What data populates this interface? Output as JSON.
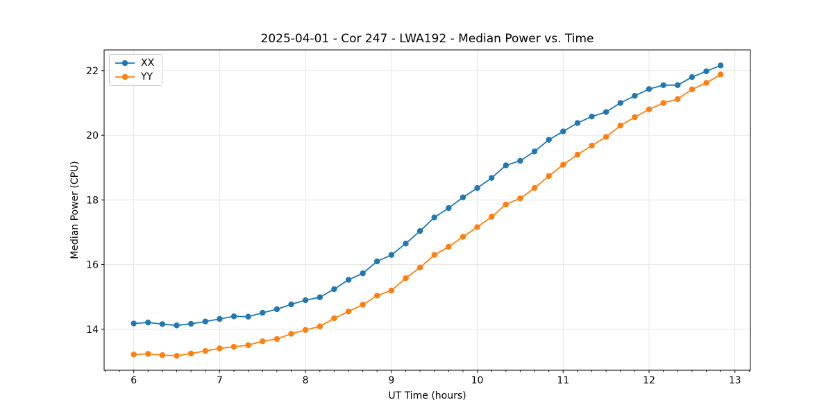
{
  "figure": {
    "title": "2025-04-01 - Cor 247 - LWA192 - Median Power vs. Time",
    "xlabel": "UT Time (hours)",
    "ylabel": "Median Power (CPU)"
  },
  "chart_data": {
    "type": "line",
    "title": "2025-04-01 - Cor 247 - LWA192 - Median Power vs. Time",
    "xlabel": "UT Time (hours)",
    "ylabel": "Median Power (CPU)",
    "x": [
      6.0,
      6.1667,
      6.3333,
      6.5,
      6.6667,
      6.8333,
      7.0,
      7.1667,
      7.3333,
      7.5,
      7.6667,
      7.8333,
      8.0,
      8.1667,
      8.3333,
      8.5,
      8.6667,
      8.8333,
      9.0,
      9.1667,
      9.3333,
      9.5,
      9.6667,
      9.8333,
      10.0,
      10.1667,
      10.3333,
      10.5,
      10.6667,
      10.8333,
      11.0,
      11.1667,
      11.3333,
      11.5,
      11.6667,
      11.8333,
      12.0,
      12.1667,
      12.3333,
      12.5,
      12.6667,
      12.8333
    ],
    "series": [
      {
        "name": "XX",
        "color": "#1f77b4",
        "marker": "circle",
        "values": [
          14.18,
          14.21,
          14.16,
          14.12,
          14.17,
          14.24,
          14.32,
          14.4,
          14.39,
          14.51,
          14.62,
          14.77,
          14.9,
          14.99,
          15.24,
          15.53,
          15.73,
          16.1,
          16.3,
          16.65,
          17.04,
          17.46,
          17.75,
          18.08,
          18.37,
          18.68,
          19.07,
          19.21,
          19.5,
          19.86,
          20.12,
          20.38,
          20.58,
          20.72,
          21.0,
          21.22,
          21.43,
          21.55,
          21.55,
          21.8,
          21.98,
          22.16
        ]
      },
      {
        "name": "YY",
        "color": "#ff7f0e",
        "marker": "circle",
        "values": [
          13.22,
          13.24,
          13.2,
          13.18,
          13.25,
          13.33,
          13.41,
          13.46,
          13.51,
          13.63,
          13.7,
          13.86,
          13.98,
          14.09,
          14.34,
          14.55,
          14.76,
          15.04,
          15.2,
          15.58,
          15.91,
          16.3,
          16.55,
          16.86,
          17.16,
          17.48,
          17.86,
          18.05,
          18.37,
          18.74,
          19.09,
          19.4,
          19.68,
          19.95,
          20.3,
          20.56,
          20.8,
          21.0,
          21.12,
          21.42,
          21.62,
          21.88
        ]
      }
    ],
    "xlim": [
      5.655,
      13.18
    ],
    "ylim": [
      12.733,
      22.64
    ],
    "xticks": [
      6,
      7,
      8,
      9,
      10,
      11,
      12,
      13
    ],
    "yticks": [
      14,
      16,
      18,
      20,
      22
    ],
    "x_minor_step": 0.16667,
    "grid": true,
    "grid_color": "#e6e6e6",
    "background": "#ffffff",
    "legend_position": "upper-left"
  }
}
